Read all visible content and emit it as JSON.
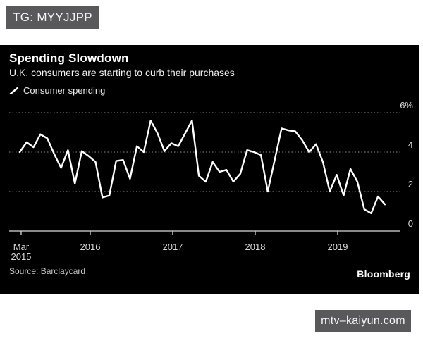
{
  "overlays": {
    "tag_label": "TG: MYYJJPP",
    "watermark": "mtv–kaiyun.com"
  },
  "chart": {
    "title": "Spending Slowdown",
    "subtitle": "U.K. consumers are starting to curb their purchases",
    "legend_label": "Consumer spending",
    "source": "Source: Barclaycard",
    "brand": "Bloomberg",
    "colors": {
      "panel_bg": "#000000",
      "series_line": "#ffffff",
      "grid_dots": "#8f8f8f",
      "axis_text": "#d9d9d9",
      "badge_bg": "#59595b"
    }
  },
  "chart_data": {
    "type": "line",
    "title": "Spending Slowdown",
    "subtitle": "U.K. consumers are starting to curb their purchases",
    "legend": [
      "Consumer spending"
    ],
    "legend_position": "top-left",
    "grid": "horizontal-dotted",
    "ylim": [
      0,
      6
    ],
    "y_ticks": [
      {
        "label": "6%",
        "value": 6
      },
      {
        "label": "4",
        "value": 4
      },
      {
        "label": "2",
        "value": 2
      },
      {
        "label": "0",
        "value": 0
      }
    ],
    "x_tick_labels": [
      [
        "Mar",
        "2015"
      ],
      [
        "2016"
      ],
      [
        "2017"
      ],
      [
        "2018"
      ],
      [
        "2019"
      ]
    ],
    "categories": [
      "Mar 2015",
      "Apr 2015",
      "May 2015",
      "Jun 2015",
      "Jul 2015",
      "Aug 2015",
      "Sep 2015",
      "Oct 2015",
      "Nov 2015",
      "Dec 2015",
      "Jan 2016",
      "Feb 2016",
      "Mar 2016",
      "Apr 2016",
      "May 2016",
      "Jun 2016",
      "Jul 2016",
      "Aug 2016",
      "Sep 2016",
      "Oct 2016",
      "Nov 2016",
      "Dec 2016",
      "Jan 2017",
      "Feb 2017",
      "Mar 2017",
      "Apr 2017",
      "May 2017",
      "Jun 2017",
      "Jul 2017",
      "Aug 2017",
      "Sep 2017",
      "Oct 2017",
      "Nov 2017",
      "Dec 2017",
      "Jan 2018",
      "Feb 2018",
      "Mar 2018",
      "Apr 2018",
      "May 2018",
      "Jun 2018",
      "Jul 2018",
      "Aug 2018",
      "Sep 2018",
      "Oct 2018",
      "Nov 2018",
      "Dec 2018",
      "Jan 2019",
      "Feb 2019",
      "Mar 2019",
      "Apr 2019",
      "May 2019",
      "Jun 2019",
      "Jul 2019",
      "Aug 2019"
    ],
    "series": [
      {
        "name": "Consumer spending",
        "values": [
          4.0,
          4.5,
          4.25,
          4.9,
          4.7,
          3.9,
          3.2,
          4.1,
          2.4,
          4.05,
          3.8,
          3.5,
          1.7,
          1.8,
          3.55,
          3.6,
          2.65,
          4.3,
          4.0,
          5.6,
          4.95,
          4.05,
          4.45,
          4.3,
          4.95,
          5.6,
          2.8,
          2.5,
          3.5,
          3.0,
          3.1,
          2.5,
          2.9,
          4.1,
          4.0,
          3.85,
          2.0,
          3.6,
          5.2,
          5.1,
          5.05,
          4.6,
          4.0,
          4.4,
          3.5,
          2.0,
          2.85,
          1.8,
          3.15,
          2.5,
          1.1,
          0.9,
          1.75,
          1.35
        ]
      }
    ],
    "source": "Source: Barclaycard",
    "brand": "Bloomberg"
  }
}
